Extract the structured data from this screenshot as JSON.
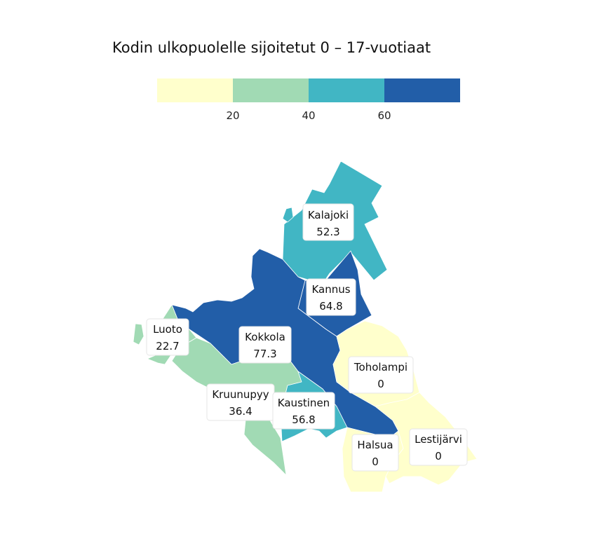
{
  "title": "Kodin ulkopuolelle sijoitetut 0 – 17-vuotiaat",
  "legend": {
    "bins": [
      {
        "from": 0,
        "to": 20,
        "color": "#ffffcc"
      },
      {
        "from": 20,
        "to": 40,
        "color": "#a1dab4"
      },
      {
        "from": 40,
        "to": 60,
        "color": "#41b6c4"
      },
      {
        "from": 60,
        "to": 80,
        "color": "#225ea8"
      }
    ],
    "ticks": [
      "20",
      "40",
      "60"
    ]
  },
  "regions": [
    {
      "id": "kalajoki",
      "name": "Kalajoki",
      "value": "52.3",
      "color": "#41b6c4"
    },
    {
      "id": "kannus",
      "name": "Kannus",
      "value": "64.8",
      "color": "#225ea8"
    },
    {
      "id": "kokkola",
      "name": "Kokkola",
      "value": "77.3",
      "color": "#225ea8"
    },
    {
      "id": "luoto",
      "name": "Luoto",
      "value": "22.7",
      "color": "#a1dab4"
    },
    {
      "id": "kruunupyy",
      "name": "Kruunupyy",
      "value": "36.4",
      "color": "#a1dab4"
    },
    {
      "id": "kaustinen",
      "name": "Kaustinen",
      "value": "56.8",
      "color": "#41b6c4"
    },
    {
      "id": "toholampi",
      "name": "Toholampi",
      "value": "0",
      "color": "#ffffcc"
    },
    {
      "id": "halsua",
      "name": "Halsua",
      "value": "0",
      "color": "#ffffcc"
    },
    {
      "id": "lestijarvi",
      "name": "Lestijärvi",
      "value": "0",
      "color": "#ffffcc"
    }
  ]
}
